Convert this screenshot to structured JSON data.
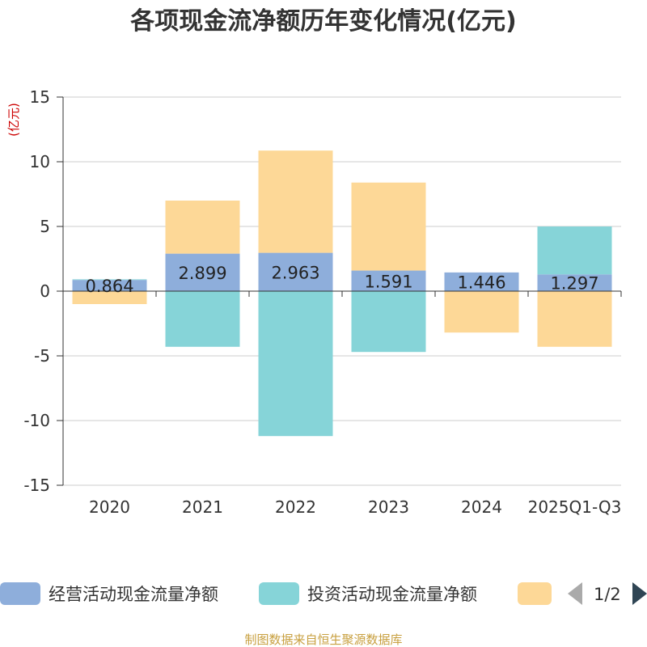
{
  "chart_data": {
    "type": "bar",
    "stacked": true,
    "title": "各项现金流净额历年变化情况(亿元)",
    "unit_label": "(亿元)",
    "categories": [
      "2020",
      "2021",
      "2022",
      "2023",
      "2024",
      "2025Q1-Q3"
    ],
    "ylim": [
      -15,
      15
    ],
    "yticks": [
      15,
      10,
      5,
      0,
      -5,
      -10,
      -15
    ],
    "series": [
      {
        "name": "经营活动现金流量净额",
        "color": "#8eaedb",
        "values": [
          0.864,
          2.899,
          2.963,
          1.591,
          1.446,
          1.297
        ],
        "labels": [
          "0.864",
          "2.899",
          "2.963",
          "1.591",
          "1.446",
          "1.297"
        ]
      },
      {
        "name": "投资活动现金流量净额",
        "color": "#86d4d8",
        "values": [
          0.05,
          -4.3,
          -11.2,
          -4.7,
          0.0,
          3.7
        ]
      },
      {
        "name": "",
        "color": "#fdd897",
        "values": [
          -1.0,
          4.1,
          7.9,
          6.8,
          -3.2,
          -4.3
        ]
      }
    ],
    "legend": {
      "page": "1/2"
    },
    "source": "制图数据来自恒生聚源数据库"
  }
}
